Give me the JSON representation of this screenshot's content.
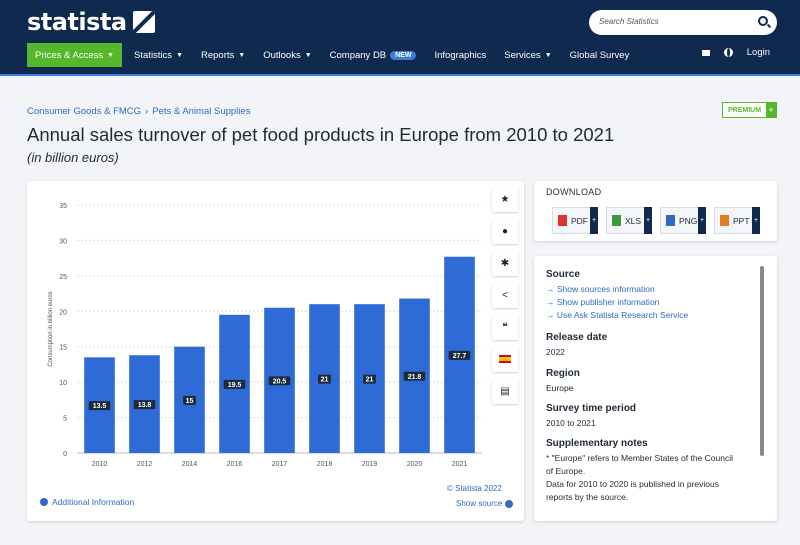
{
  "header": {
    "logo_text": "statista",
    "search_placeholder": "Search Statistics",
    "nav": {
      "prices": "Prices & Access",
      "statistics": "Statistics",
      "reports": "Reports",
      "outlooks": "Outlooks",
      "companydb": "Company DB",
      "new_badge": "NEW",
      "infographics": "Infographics",
      "services": "Services",
      "global_survey": "Global Survey"
    },
    "login": "Login"
  },
  "breadcrumb": {
    "level1": "Consumer Goods & FMCG",
    "sep": "›",
    "level2": "Pets & Animal Supplies"
  },
  "premium_label": "PREMIUM",
  "title": "Annual sales turnover of pet food products in Europe from 2010 to 2021",
  "subtitle": "(in billion euros)",
  "chart_data": {
    "type": "bar",
    "categories": [
      "2010",
      "2012",
      "2014",
      "2016",
      "2017",
      "2018",
      "2019",
      "2020",
      "2021"
    ],
    "values": [
      13.5,
      13.8,
      15,
      19.5,
      20.5,
      21,
      21,
      21.8,
      27.7
    ],
    "value_labels": [
      "13.5",
      "13.8",
      "15",
      "19.5",
      "20.5",
      "21",
      "21",
      "21.8",
      "27.7"
    ],
    "ylabel": "Consumption in billion euros",
    "ylim": [
      0,
      35
    ],
    "yticks": [
      0,
      5,
      10,
      15,
      20,
      25,
      30,
      35
    ],
    "grid": true,
    "bar_color": "#2e6bd6"
  },
  "chart_footer": {
    "additional_info": "Additional Information",
    "copyright": "© Statista 2022",
    "show_source": "Show source"
  },
  "download": {
    "title": "DOWNLOAD",
    "pdf": "PDF",
    "xls": "XLS",
    "png": "PNG",
    "ppt": "PPT"
  },
  "source": {
    "source_head": "Source",
    "link1": "Show sources information",
    "link2": "Show publisher information",
    "link3": "Use Ask Statista Research Service",
    "release_head": "Release date",
    "release_val": "2022",
    "region_head": "Region",
    "region_val": "Europe",
    "period_head": "Survey time period",
    "period_val": "2010 to 2021",
    "notes_head": "Supplementary notes",
    "note1": "* \"Europe\" refers to Member States of the Council",
    "note2": "of Europe.",
    "note3": "Data for 2010 to 2020 is published in previous",
    "note4": "reports by the source."
  },
  "colors": {
    "header_bg": "#0f2a4e",
    "accent_green": "#55b82a",
    "link_blue": "#2e6bc1"
  }
}
